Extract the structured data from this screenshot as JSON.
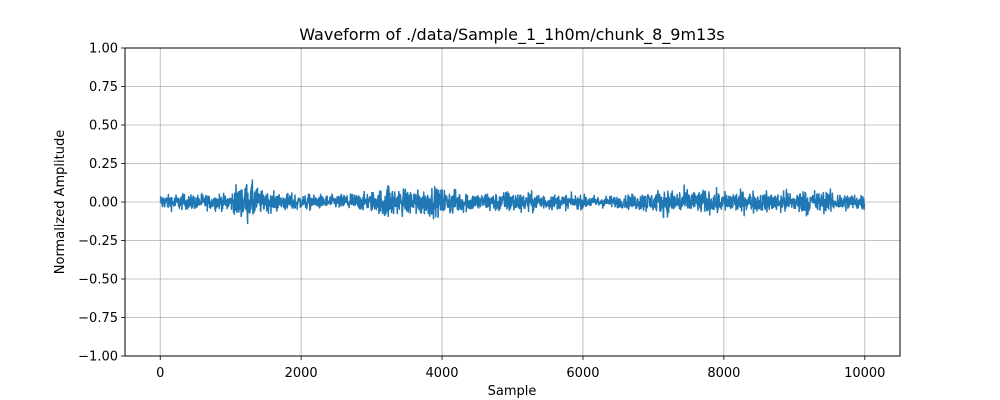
{
  "chart_data": {
    "type": "line",
    "title": "Waveform of ./data/Sample_1_1h0m/chunk_8_9m13s",
    "xlabel": "Sample",
    "ylabel": "Normalized Amplitude",
    "xlim": [
      -500,
      10500
    ],
    "ylim": [
      -1.0,
      1.0
    ],
    "xticks": [
      0,
      2000,
      4000,
      6000,
      8000,
      10000
    ],
    "xtick_labels": [
      "0",
      "2000",
      "4000",
      "6000",
      "8000",
      "10000"
    ],
    "yticks": [
      -1.0,
      -0.75,
      -0.5,
      -0.25,
      0.0,
      0.25,
      0.5,
      0.75,
      1.0
    ],
    "ytick_labels": [
      "−1.00",
      "−0.75",
      "−0.50",
      "−0.25",
      "0.00",
      "0.25",
      "0.50",
      "0.75",
      "1.00"
    ],
    "grid": true,
    "legend": "none",
    "series": [
      {
        "color": "#1f77b4",
        "n_samples": 10000,
        "x_start": 0,
        "x_end": 9999,
        "baseline_amplitude": 0.05,
        "envelope": [
          {
            "x": 0,
            "amplitude": 0.07
          },
          {
            "x": 500,
            "amplitude": 0.07
          },
          {
            "x": 1000,
            "amplitude": 0.07
          },
          {
            "x": 1100,
            "amplitude": 0.15
          },
          {
            "x": 1300,
            "amplitude": 0.18
          },
          {
            "x": 1450,
            "amplitude": 0.1
          },
          {
            "x": 2000,
            "amplitude": 0.07
          },
          {
            "x": 2500,
            "amplitude": 0.06
          },
          {
            "x": 3100,
            "amplitude": 0.1
          },
          {
            "x": 3200,
            "amplitude": 0.17
          },
          {
            "x": 3350,
            "amplitude": 0.12
          },
          {
            "x": 3900,
            "amplitude": 0.13
          },
          {
            "x": 4500,
            "amplitude": 0.08
          },
          {
            "x": 5000,
            "amplitude": 0.1
          },
          {
            "x": 5500,
            "amplitude": 0.07
          },
          {
            "x": 6500,
            "amplitude": 0.05
          },
          {
            "x": 7000,
            "amplitude": 0.1
          },
          {
            "x": 7300,
            "amplitude": 0.12
          },
          {
            "x": 8000,
            "amplitude": 0.1
          },
          {
            "x": 8500,
            "amplitude": 0.09
          },
          {
            "x": 9200,
            "amplitude": 0.11
          },
          {
            "x": 9600,
            "amplitude": 0.09
          },
          {
            "x": 9999,
            "amplitude": 0.07
          }
        ]
      }
    ]
  }
}
